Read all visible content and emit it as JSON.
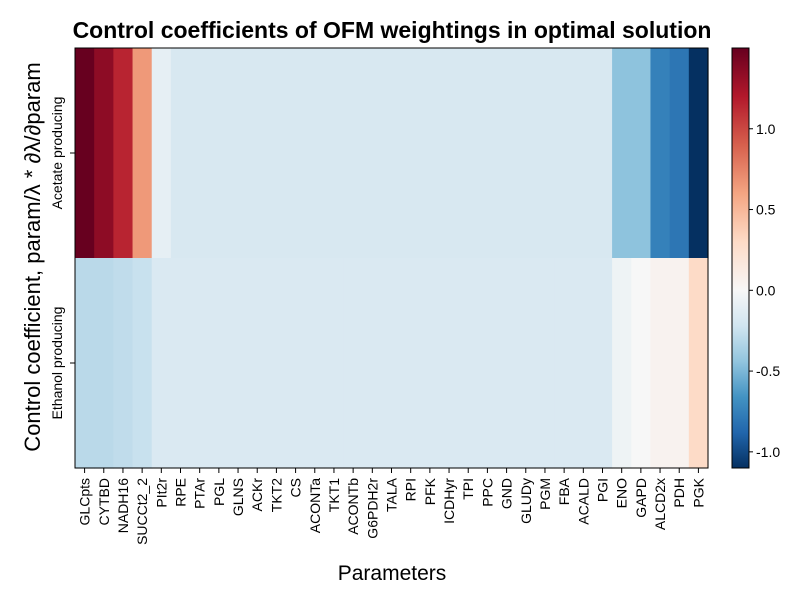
{
  "chart_data": {
    "type": "heatmap",
    "title": "Control coefficients of OFM weightings in optimal solution",
    "xlabel": "Parameters",
    "ylabel": "Control coefficient, param/λ * ∂λ/∂param",
    "x_categories": [
      "GLCpts",
      "CYTBD",
      "NADH16",
      "SUCCt2_2",
      "PIt2r",
      "RPE",
      "PTAr",
      "PGL",
      "GLNS",
      "ACKr",
      "TKT2",
      "CS",
      "ACONTa",
      "TKT1",
      "ACONTb",
      "G6PDH2r",
      "TALA",
      "RPI",
      "PFK",
      "ICDHyr",
      "TPI",
      "PPC",
      "GND",
      "GLUDy",
      "PGM",
      "FBA",
      "ACALD",
      "PGI",
      "ENO",
      "GAPD",
      "ALCD2x",
      "PDH",
      "PGK"
    ],
    "y_categories": [
      "Acetate producing",
      "Ethanol producing"
    ],
    "values": [
      [
        1.5,
        1.35,
        1.15,
        0.65,
        -0.1,
        -0.18,
        -0.18,
        -0.18,
        -0.18,
        -0.18,
        -0.18,
        -0.18,
        -0.18,
        -0.18,
        -0.18,
        -0.18,
        -0.18,
        -0.18,
        -0.18,
        -0.18,
        -0.18,
        -0.18,
        -0.18,
        -0.18,
        -0.18,
        -0.18,
        -0.18,
        -0.18,
        -0.45,
        -0.45,
        -0.75,
        -0.8,
        -1.1
      ],
      [
        -0.3,
        -0.3,
        -0.28,
        -0.25,
        -0.17,
        -0.17,
        -0.17,
        -0.17,
        -0.17,
        -0.17,
        -0.17,
        -0.17,
        -0.17,
        -0.17,
        -0.17,
        -0.17,
        -0.17,
        -0.17,
        -0.17,
        -0.17,
        -0.17,
        -0.17,
        -0.17,
        -0.17,
        -0.17,
        -0.17,
        -0.17,
        -0.17,
        -0.05,
        0.0,
        0.05,
        0.05,
        0.3
      ]
    ],
    "colorbar": {
      "min": -1.1,
      "max": 1.5,
      "ticks": [
        -1.0,
        -0.5,
        0.0,
        0.5,
        1.0
      ],
      "tick_labels": [
        "-1.0",
        "-0.5",
        "0.0",
        "0.5",
        "1.0"
      ],
      "colormap": "RdBu_r"
    },
    "grid": false
  }
}
